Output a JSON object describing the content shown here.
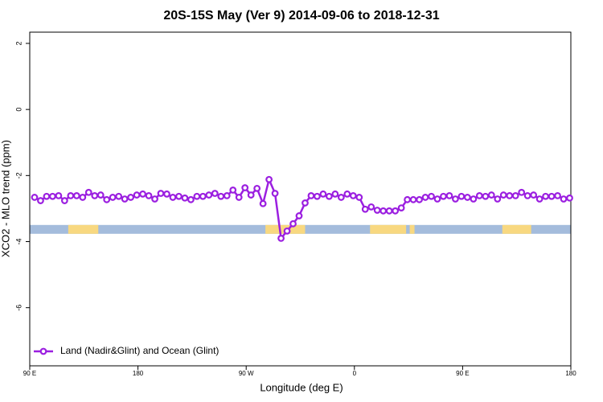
{
  "chart_data": {
    "type": "line",
    "title": "20S-15S May (Ver 9)   2014-09-06 to 2018-12-31",
    "xlabel": "Longitude (deg E)",
    "ylabel": "XCO2 - MLO trend (ppm)",
    "xlim": [
      90,
      540
    ],
    "ylim": [
      -7.76,
      2.34
    ],
    "xticks": [
      {
        "value": 90,
        "label": "90 E"
      },
      180,
      {
        "value": 270,
        "label": "90 W"
      },
      {
        "value": 360,
        "label": "0"
      },
      {
        "value": 450,
        "label": "90 E"
      },
      {
        "value": 540,
        "label": "180"
      }
    ],
    "yticks": [
      2,
      0,
      -2,
      -4,
      -6
    ],
    "legend": "lower left",
    "x": [
      94,
      99,
      104,
      109,
      114,
      119,
      124,
      129,
      134,
      139,
      144,
      149,
      154,
      159,
      164,
      169,
      174,
      179,
      184,
      189,
      194,
      199,
      204,
      209,
      214,
      219,
      224,
      229,
      234,
      239,
      244,
      249,
      254,
      259,
      264,
      269,
      274,
      279,
      284,
      289,
      294,
      299,
      304,
      309,
      314,
      319,
      324,
      329,
      334,
      339,
      344,
      349,
      354,
      359,
      364,
      369,
      374,
      379,
      384,
      389,
      394,
      399,
      404,
      409,
      414,
      419,
      424,
      429,
      434,
      439,
      444,
      449,
      454,
      459,
      464,
      469,
      474,
      479,
      484,
      489,
      494,
      499,
      504,
      509,
      514,
      519,
      524,
      529,
      534,
      539
    ],
    "series": [
      {
        "name": "Land (Nadir&Glint) and Ocean (Glint)",
        "color": "#9b1fe0",
        "values": [
          -2.66,
          -2.76,
          -2.63,
          -2.63,
          -2.61,
          -2.76,
          -2.61,
          -2.61,
          -2.66,
          -2.51,
          -2.61,
          -2.59,
          -2.73,
          -2.66,
          -2.63,
          -2.71,
          -2.66,
          -2.59,
          -2.56,
          -2.61,
          -2.71,
          -2.54,
          -2.56,
          -2.66,
          -2.63,
          -2.68,
          -2.73,
          -2.63,
          -2.63,
          -2.59,
          -2.54,
          -2.63,
          -2.61,
          -2.44,
          -2.66,
          -2.37,
          -2.59,
          -2.39,
          -2.85,
          -2.12,
          -2.54,
          -3.9,
          -3.68,
          -3.46,
          -3.22,
          -2.83,
          -2.61,
          -2.63,
          -2.56,
          -2.63,
          -2.56,
          -2.66,
          -2.56,
          -2.61,
          -2.66,
          -3.02,
          -2.95,
          -3.05,
          -3.07,
          -3.07,
          -3.07,
          -2.98,
          -2.73,
          -2.73,
          -2.73,
          -2.66,
          -2.63,
          -2.71,
          -2.63,
          -2.61,
          -2.71,
          -2.63,
          -2.66,
          -2.71,
          -2.61,
          -2.63,
          -2.59,
          -2.71,
          -2.59,
          -2.61,
          -2.61,
          -2.51,
          -2.61,
          -2.59,
          -2.71,
          -2.63,
          -2.63,
          -2.61,
          -2.71,
          -2.68
        ]
      }
    ],
    "surface_band": {
      "y": -3.63,
      "ocean_color": "#a4bcdc",
      "land_color": "#f8d880",
      "land_ranges": [
        [
          122,
          147
        ],
        [
          286,
          319
        ],
        [
          373,
          403
        ],
        [
          406,
          410
        ],
        [
          483,
          507
        ]
      ]
    }
  }
}
